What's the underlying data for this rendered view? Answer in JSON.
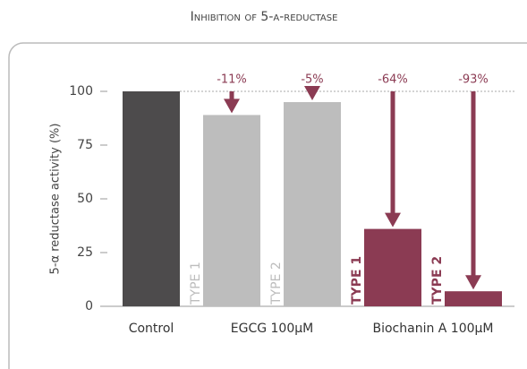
{
  "chart_data": {
    "type": "bar",
    "title": "Inhibition of 5-α-reductase",
    "ylabel": "5-α reductase activity (%)",
    "ylim": [
      0,
      100
    ],
    "yticks": [
      0,
      25,
      50,
      75,
      100
    ],
    "groups": [
      "Control",
      "EGCG 100µM",
      "Biochanin A 100µM"
    ],
    "categories": [
      null,
      "TYPE 1",
      "TYPE 2",
      "TYPE 1",
      "TYPE 2"
    ],
    "values": [
      100,
      89,
      95,
      36,
      7
    ],
    "colors": [
      "#4d4b4c",
      "#bdbdbd",
      "#bdbdbd",
      "#8b3b53",
      "#8b3b53"
    ],
    "annotations": [
      null,
      "-11%",
      "-5%",
      "-64%",
      "-93%"
    ],
    "annotation_color": "#8b3b53"
  }
}
